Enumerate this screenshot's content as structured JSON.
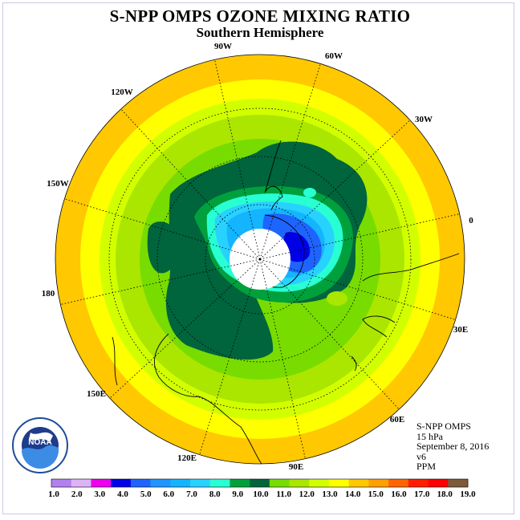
{
  "title": "S-NPP OMPS OZONE MIXING RATIO",
  "subtitle": "Southern Hemisphere",
  "longitude_labels": [
    "90W",
    "60W",
    "30W",
    "0",
    "30E",
    "60E",
    "90E",
    "120E",
    "150E",
    "180",
    "150W",
    "120W"
  ],
  "info": {
    "instrument": "S-NPP OMPS",
    "pressure_level": "15 hPa",
    "date": "September 8, 2016",
    "version": "v6",
    "units": "PPM"
  },
  "logo": {
    "name": "noaa-logo",
    "text": "NOAA"
  },
  "colorbar": {
    "labels": [
      "1.0",
      "2.0",
      "3.0",
      "4.0",
      "5.0",
      "6.0",
      "7.0",
      "8.0",
      "9.0",
      "10.0",
      "11.0",
      "12.0",
      "13.0",
      "14.0",
      "15.0",
      "16.0",
      "17.0",
      "18.0",
      "19.0"
    ],
    "colors": [
      "#b380f0",
      "#dcb4f5",
      "#ee00ee",
      "#0000e6",
      "#1e64ff",
      "#1e96ff",
      "#14b4ff",
      "#28d2ff",
      "#28ffd2",
      "#00a03c",
      "#00643c",
      "#78dc00",
      "#aae600",
      "#d2ff00",
      "#ffff00",
      "#ffc800",
      "#ffa000",
      "#ff6400",
      "#ff1e00",
      "#ff0000",
      "#7d5a3c"
    ]
  },
  "colors": {
    "ring_outer": "#ffc800",
    "ring_yellow": "#ffff00",
    "ring_lime": "#d2ff00",
    "ring_green": "#aae600",
    "ring_mid": "#78dc00",
    "dark_green": "#00643c",
    "green": "#00a03c",
    "cyan": "#28ffd2",
    "light_blue": "#28d2ff",
    "blue": "#14b4ff",
    "deep_blue": "#1e64ff",
    "darkest_blue": "#0000e6"
  }
}
